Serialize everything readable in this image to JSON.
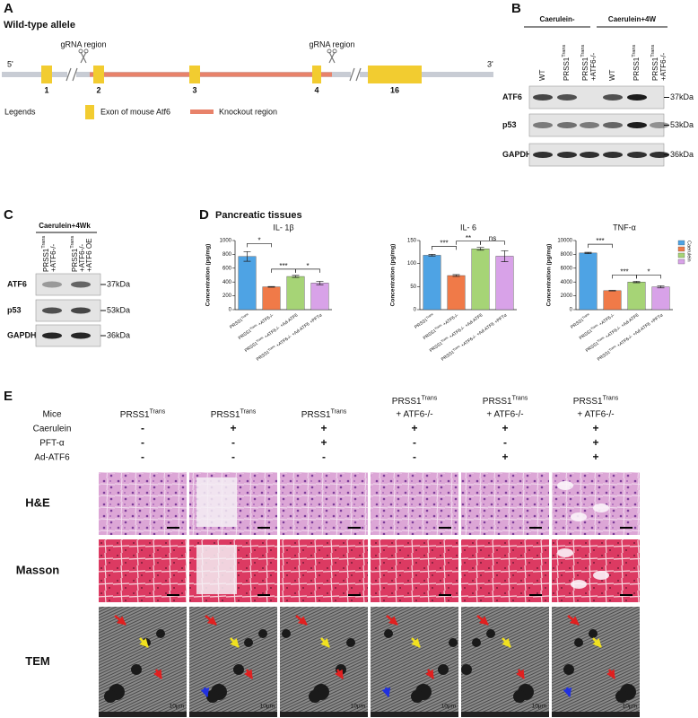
{
  "panel_a": {
    "label": "A",
    "title": "Wild-type allele",
    "end_5": "5'",
    "end_3": "3'",
    "grna_labels": [
      "gRNA region",
      "gRNA region"
    ],
    "exons": [
      "1",
      "2",
      "3",
      "4",
      "16"
    ],
    "legend_title": "Legends",
    "legend_exon": "Exon of mouse Atf6",
    "legend_knockout": "Knockout region"
  },
  "panel_b": {
    "label": "B",
    "groups": [
      "Caerulein-",
      "Caerulein+4W"
    ],
    "lanes": [
      {
        "name": "WT"
      },
      {
        "name": "PRSS1",
        "sup": "Trans"
      },
      {
        "name": "PRSS1",
        "sup": "Trans",
        "extra": [
          "+ATF6-/-"
        ]
      },
      {
        "name": "WT"
      },
      {
        "name": "PRSS1",
        "sup": "Trans"
      },
      {
        "name": "PRSS1",
        "sup": "Trans",
        "extra": [
          "+ATF6-/-"
        ]
      }
    ],
    "rows": [
      {
        "name": "ATF6",
        "size": "37kDa"
      },
      {
        "name": "p53",
        "size": "53kDa"
      },
      {
        "name": "GAPDH",
        "size": "36kDa"
      }
    ]
  },
  "panel_c": {
    "label": "C",
    "group": "Caerulein+4Wk",
    "lanes": [
      {
        "name": "PRSS1",
        "sup": "Trans",
        "extra": [
          "+ATF6-/-"
        ]
      },
      {
        "name": "PRSS1",
        "sup": "Trans",
        "extra": [
          "+ATF6-/-",
          "+ATF6 OE"
        ]
      }
    ],
    "rows": [
      {
        "name": "ATF6",
        "size": "37kDa"
      },
      {
        "name": "p53",
        "size": "53kDa"
      },
      {
        "name": "GAPDH",
        "size": "36kDa"
      }
    ]
  },
  "panel_d": {
    "label": "D",
    "title": "Pancreatic tissues",
    "legend": "Caerulein",
    "categories": [
      {
        "name": "PRSS1",
        "sup": "Trans"
      },
      {
        "name": "PRSS1",
        "sup": "Trans",
        "extra": [
          "+ATF6-/-"
        ]
      },
      {
        "name": "PRSS1",
        "sup": "Trans",
        "extra": [
          "+ATF6-/-",
          "+Ad-ATF6"
        ]
      },
      {
        "name": "PRSS1",
        "sup": "Trans",
        "extra": [
          "+ATF6-/-",
          "+Ad-ATF6",
          "+PFTα"
        ]
      }
    ],
    "colors": [
      "#4ea3e4",
      "#f07a48",
      "#a6d476",
      "#d8a2e8"
    ],
    "charts": [
      {
        "type": "bar",
        "title": "IL- 1β",
        "ylabel": "Concentration (pg/mg)",
        "ylim": [
          0,
          1000
        ],
        "yticks": [
          0,
          200,
          400,
          600,
          800,
          1000
        ],
        "values": [
          770,
          330,
          480,
          385
        ],
        "errors": [
          70,
          5,
          15,
          25
        ],
        "significance": [
          "*",
          "***",
          "*"
        ]
      },
      {
        "type": "bar",
        "title": "IL- 6",
        "ylabel": "Concentration (pg/mg)",
        "ylim": [
          0,
          150
        ],
        "yticks": [
          0,
          50,
          100,
          150
        ],
        "values": [
          118,
          74,
          132,
          116
        ],
        "errors": [
          2,
          2,
          3,
          12
        ],
        "significance": [
          "***",
          "**",
          "ns"
        ]
      },
      {
        "type": "bar",
        "title": "TNF-α",
        "ylabel": "Concentration (pg/mg)",
        "ylim": [
          0,
          10000
        ],
        "yticks": [
          0,
          2000,
          4000,
          6000,
          8000,
          10000
        ],
        "values": [
          8200,
          2750,
          4000,
          3300
        ],
        "errors": [
          100,
          50,
          100,
          150
        ],
        "significance": [
          "***",
          "***",
          "*"
        ]
      }
    ]
  },
  "panel_e": {
    "label": "E",
    "conditions": [
      "Mice",
      "Caerulein",
      "PFT-α",
      "Ad-ATF6"
    ],
    "mice": [
      {
        "name": "PRSS1",
        "sup": "Trans"
      },
      {
        "name": "PRSS1",
        "sup": "Trans"
      },
      {
        "name": "PRSS1",
        "sup": "Trans"
      },
      {
        "name": "PRSS1",
        "sup": "Trans",
        "extra": [
          "+ ATF6-/-"
        ]
      },
      {
        "name": "PRSS1",
        "sup": "Trans",
        "extra": [
          "+ ATF6-/-"
        ]
      },
      {
        "name": "PRSS1",
        "sup": "Trans",
        "extra": [
          "+ ATF6-/-"
        ]
      }
    ],
    "signs": [
      [
        "-",
        "-",
        "-"
      ],
      [
        "+",
        "-",
        "-"
      ],
      [
        "+",
        "+",
        "-"
      ],
      [
        "+",
        "-",
        "-"
      ],
      [
        "+",
        "-",
        "+"
      ],
      [
        "+",
        "+",
        "+"
      ]
    ],
    "rows": [
      "H&E",
      "Masson",
      "TEM"
    ],
    "scale_label": "10μm"
  }
}
